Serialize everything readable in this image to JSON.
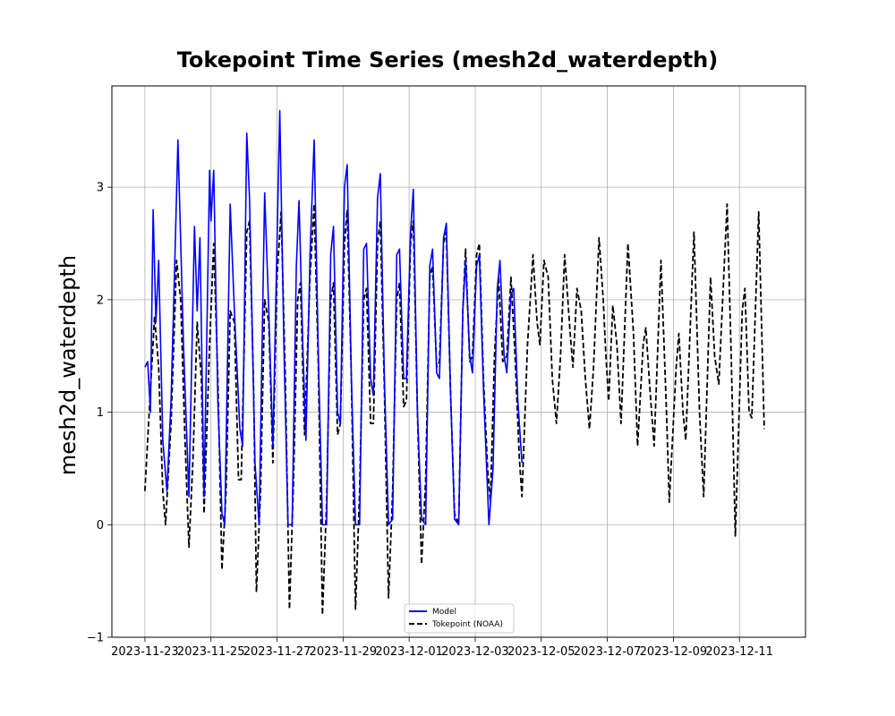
{
  "chart_data": {
    "type": "line",
    "title": "Tokepoint Time Series (mesh2d_waterdepth)",
    "xlabel": "",
    "ylabel": "mesh2d_waterdepth",
    "x_axis": {
      "type": "date",
      "range": [
        "2023-11-22T00:00",
        "2023-12-13T00:00"
      ],
      "ticks": [
        "2023-11-23",
        "2023-11-25",
        "2023-11-27",
        "2023-11-29",
        "2023-12-01",
        "2023-12-03",
        "2023-12-05",
        "2023-12-07",
        "2023-12-09",
        "2023-12-11"
      ]
    },
    "y_axis": {
      "range": [
        -1.0,
        3.9
      ],
      "ticks": [
        -1,
        0,
        1,
        2,
        3
      ]
    },
    "grid": true,
    "legend_position": "lower-center",
    "series": [
      {
        "name": "Model",
        "color": "#0000ff",
        "style": "solid",
        "points": [
          [
            "2023-11-23T00:00",
            1.4
          ],
          [
            "2023-11-23T02:00",
            1.45
          ],
          [
            "2023-11-23T04:00",
            1.0
          ],
          [
            "2023-11-23T06:00",
            2.8
          ],
          [
            "2023-11-23T08:00",
            1.8
          ],
          [
            "2023-11-23T10:00",
            2.35
          ],
          [
            "2023-11-23T13:00",
            0.75
          ],
          [
            "2023-11-23T16:00",
            0.3
          ],
          [
            "2023-11-23T19:00",
            1.1
          ],
          [
            "2023-11-23T22:00",
            2.45
          ],
          [
            "2023-11-24T00:00",
            3.42
          ],
          [
            "2023-11-24T04:00",
            1.6
          ],
          [
            "2023-11-24T08:00",
            0.25
          ],
          [
            "2023-11-24T12:00",
            2.65
          ],
          [
            "2023-11-24T14:00",
            1.9
          ],
          [
            "2023-11-24T16:00",
            2.55
          ],
          [
            "2023-11-24T19:00",
            0.25
          ],
          [
            "2023-11-24T23:00",
            3.15
          ],
          [
            "2023-11-25T00:00",
            2.7
          ],
          [
            "2023-11-25T02:00",
            3.15
          ],
          [
            "2023-11-25T05:00",
            1.1
          ],
          [
            "2023-11-25T08:00",
            0.1
          ],
          [
            "2023-11-25T10:00",
            0.0
          ],
          [
            "2023-11-25T14:00",
            2.85
          ],
          [
            "2023-11-25T17:00",
            1.9
          ],
          [
            "2023-11-25T21:00",
            0.85
          ],
          [
            "2023-11-25T23:00",
            0.7
          ],
          [
            "2023-11-26T02:00",
            3.48
          ],
          [
            "2023-11-26T04:00",
            2.9
          ],
          [
            "2023-11-26T08:00",
            0.55
          ],
          [
            "2023-11-26T11:00",
            0.0
          ],
          [
            "2023-11-26T15:00",
            2.95
          ],
          [
            "2023-11-26T18:00",
            1.9
          ],
          [
            "2023-11-26T21:00",
            0.7
          ],
          [
            "2023-11-27T00:00",
            2.5
          ],
          [
            "2023-11-27T02:00",
            3.68
          ],
          [
            "2023-11-27T05:00",
            1.6
          ],
          [
            "2023-11-27T08:00",
            0.0
          ],
          [
            "2023-11-27T11:00",
            0.0
          ],
          [
            "2023-11-27T14:00",
            2.3
          ],
          [
            "2023-11-27T16:00",
            2.88
          ],
          [
            "2023-11-27T19:00",
            1.5
          ],
          [
            "2023-11-27T21:00",
            0.75
          ],
          [
            "2023-11-28T00:00",
            2.4
          ],
          [
            "2023-11-28T03:00",
            3.42
          ],
          [
            "2023-11-28T06:00",
            1.5
          ],
          [
            "2023-11-28T09:00",
            0.0
          ],
          [
            "2023-11-28T12:00",
            0.0
          ],
          [
            "2023-11-28T15:00",
            2.4
          ],
          [
            "2023-11-28T17:00",
            2.65
          ],
          [
            "2023-11-28T20:00",
            1.0
          ],
          [
            "2023-11-28T22:00",
            0.9
          ],
          [
            "2023-11-29T01:00",
            3.0
          ],
          [
            "2023-11-29T03:00",
            3.2
          ],
          [
            "2023-11-29T06:00",
            1.3
          ],
          [
            "2023-11-29T09:00",
            0.0
          ],
          [
            "2023-11-29T12:00",
            0.0
          ],
          [
            "2023-11-29T15:00",
            2.45
          ],
          [
            "2023-11-29T17:00",
            2.5
          ],
          [
            "2023-11-29T20:00",
            1.3
          ],
          [
            "2023-11-29T22:00",
            1.15
          ],
          [
            "2023-11-30T01:00",
            2.9
          ],
          [
            "2023-11-30T03:00",
            3.12
          ],
          [
            "2023-11-30T06:00",
            1.3
          ],
          [
            "2023-11-30T09:00",
            0.0
          ],
          [
            "2023-11-30T12:00",
            0.05
          ],
          [
            "2023-11-30T15:00",
            2.4
          ],
          [
            "2023-11-30T17:00",
            2.45
          ],
          [
            "2023-11-30T20:00",
            1.3
          ],
          [
            "2023-11-30T22:00",
            1.3
          ],
          [
            "2023-12-01T01:00",
            2.6
          ],
          [
            "2023-12-01T03:00",
            2.98
          ],
          [
            "2023-12-01T06:00",
            1.0
          ],
          [
            "2023-12-01T09:00",
            0.05
          ],
          [
            "2023-12-01T12:00",
            0.0
          ],
          [
            "2023-12-01T15:00",
            2.3
          ],
          [
            "2023-12-01T17:00",
            2.45
          ],
          [
            "2023-12-01T20:00",
            1.35
          ],
          [
            "2023-12-01T22:00",
            1.3
          ],
          [
            "2023-12-02T01:00",
            2.55
          ],
          [
            "2023-12-02T03:00",
            2.68
          ],
          [
            "2023-12-02T06:00",
            1.2
          ],
          [
            "2023-12-02T09:00",
            0.05
          ],
          [
            "2023-12-02T12:00",
            0.0
          ],
          [
            "2023-12-02T15:00",
            1.9
          ],
          [
            "2023-12-02T17:00",
            2.35
          ],
          [
            "2023-12-02T20:00",
            1.5
          ],
          [
            "2023-12-02T22:00",
            1.35
          ],
          [
            "2023-12-03T01:00",
            2.3
          ],
          [
            "2023-12-03T03:00",
            2.4
          ],
          [
            "2023-12-03T06:00",
            1.2
          ],
          [
            "2023-12-03T10:00",
            0.0
          ],
          [
            "2023-12-03T13:00",
            0.5
          ],
          [
            "2023-12-03T16:00",
            2.1
          ],
          [
            "2023-12-03T18:00",
            2.35
          ],
          [
            "2023-12-03T21:00",
            1.5
          ],
          [
            "2023-12-03T23:00",
            1.35
          ],
          [
            "2023-12-04T02:00",
            2.05
          ],
          [
            "2023-12-04T04:00",
            2.1
          ],
          [
            "2023-12-04T07:00",
            1.1
          ],
          [
            "2023-12-04T10:00",
            0.55
          ]
        ]
      },
      {
        "name": "Tokepoint (NOAA)",
        "color": "#000000",
        "style": "dashed",
        "points": [
          [
            "2023-11-23T00:00",
            0.3
          ],
          [
            "2023-11-23T04:00",
            1.2
          ],
          [
            "2023-11-23T07:00",
            1.85
          ],
          [
            "2023-11-23T10:00",
            1.4
          ],
          [
            "2023-11-23T13:00",
            0.3
          ],
          [
            "2023-11-23T15:00",
            0.0
          ],
          [
            "2023-11-23T19:00",
            0.9
          ],
          [
            "2023-11-23T23:00",
            2.35
          ],
          [
            "2023-11-24T02:00",
            2.0
          ],
          [
            "2023-11-24T05:00",
            0.8
          ],
          [
            "2023-11-24T08:00",
            -0.2
          ],
          [
            "2023-11-24T11:00",
            0.6
          ],
          [
            "2023-11-24T14:00",
            1.8
          ],
          [
            "2023-11-24T17:00",
            1.3
          ],
          [
            "2023-11-24T19:00",
            0.1
          ],
          [
            "2023-11-24T23:00",
            1.6
          ],
          [
            "2023-11-25T02:00",
            2.5
          ],
          [
            "2023-11-25T05:00",
            1.3
          ],
          [
            "2023-11-25T08:00",
            -0.4
          ],
          [
            "2023-11-25T11:00",
            0.3
          ],
          [
            "2023-11-25T14:00",
            1.9
          ],
          [
            "2023-11-25T17:00",
            1.8
          ],
          [
            "2023-11-25T20:00",
            0.4
          ],
          [
            "2023-11-25T22:00",
            0.4
          ],
          [
            "2023-11-26T02:00",
            2.6
          ],
          [
            "2023-11-26T04:00",
            2.7
          ],
          [
            "2023-11-26T07:00",
            1.2
          ],
          [
            "2023-11-26T09:00",
            -0.6
          ],
          [
            "2023-11-26T12:00",
            0.3
          ],
          [
            "2023-11-26T15:00",
            2.0
          ],
          [
            "2023-11-26T18:00",
            1.8
          ],
          [
            "2023-11-26T21:00",
            0.55
          ],
          [
            "2023-11-27T00:00",
            2.2
          ],
          [
            "2023-11-27T03:00",
            2.78
          ],
          [
            "2023-11-27T06:00",
            1.3
          ],
          [
            "2023-11-27T09:00",
            -0.75
          ],
          [
            "2023-11-27T12:00",
            0.4
          ],
          [
            "2023-11-27T15:00",
            2.0
          ],
          [
            "2023-11-27T17:00",
            2.15
          ],
          [
            "2023-11-27T20:00",
            0.8
          ],
          [
            "2023-11-28T00:00",
            2.2
          ],
          [
            "2023-11-28T03:00",
            2.85
          ],
          [
            "2023-11-28T06:00",
            1.4
          ],
          [
            "2023-11-28T09:00",
            -0.8
          ],
          [
            "2023-11-28T12:00",
            0.2
          ],
          [
            "2023-11-28T15:00",
            2.0
          ],
          [
            "2023-11-28T17:00",
            2.15
          ],
          [
            "2023-11-28T20:00",
            0.8
          ],
          [
            "2023-11-28T22:00",
            0.9
          ],
          [
            "2023-11-29T01:00",
            2.5
          ],
          [
            "2023-11-29T03:00",
            2.8
          ],
          [
            "2023-11-29T06:00",
            1.3
          ],
          [
            "2023-11-29T09:00",
            -0.75
          ],
          [
            "2023-11-29T12:00",
            0.3
          ],
          [
            "2023-11-29T15:00",
            2.0
          ],
          [
            "2023-11-29T17:00",
            2.1
          ],
          [
            "2023-11-29T20:00",
            0.9
          ],
          [
            "2023-11-29T22:00",
            0.9
          ],
          [
            "2023-11-30T01:00",
            2.5
          ],
          [
            "2023-11-30T03:00",
            2.7
          ],
          [
            "2023-11-30T06:00",
            1.2
          ],
          [
            "2023-11-30T09:00",
            -0.65
          ],
          [
            "2023-11-30T12:00",
            0.3
          ],
          [
            "2023-11-30T15:00",
            2.0
          ],
          [
            "2023-11-30T17:00",
            2.15
          ],
          [
            "2023-11-30T20:00",
            1.05
          ],
          [
            "2023-11-30T22:00",
            1.1
          ],
          [
            "2023-12-01T01:00",
            2.5
          ],
          [
            "2023-12-01T03:00",
            2.7
          ],
          [
            "2023-12-01T06:00",
            1.0
          ],
          [
            "2023-12-01T09:00",
            -0.35
          ],
          [
            "2023-12-01T12:00",
            0.4
          ],
          [
            "2023-12-01T15:00",
            2.2
          ],
          [
            "2023-12-01T17:00",
            2.3
          ],
          [
            "2023-12-01T20:00",
            1.4
          ],
          [
            "2023-12-01T22:00",
            1.45
          ],
          [
            "2023-12-02T01:00",
            2.5
          ],
          [
            "2023-12-02T03:00",
            2.6
          ],
          [
            "2023-12-02T06:00",
            1.2
          ],
          [
            "2023-12-02T09:00",
            0.1
          ],
          [
            "2023-12-02T12:00",
            0.0
          ],
          [
            "2023-12-02T15:00",
            1.9
          ],
          [
            "2023-12-02T17:00",
            2.45
          ],
          [
            "2023-12-02T20:00",
            1.45
          ],
          [
            "2023-12-02T22:00",
            1.5
          ],
          [
            "2023-12-03T01:00",
            2.4
          ],
          [
            "2023-12-03T03:00",
            2.5
          ],
          [
            "2023-12-03T06:00",
            1.3
          ],
          [
            "2023-12-03T09:00",
            0.5
          ],
          [
            "2023-12-03T11:00",
            0.2
          ],
          [
            "2023-12-03T14:00",
            1.5
          ],
          [
            "2023-12-03T17:00",
            2.2
          ],
          [
            "2023-12-03T20:00",
            1.45
          ],
          [
            "2023-12-03T23:00",
            1.5
          ],
          [
            "2023-12-04T02:00",
            2.2
          ],
          [
            "2023-12-04T05:00",
            1.5
          ],
          [
            "2023-12-04T08:00",
            0.6
          ],
          [
            "2023-12-04T10:00",
            0.25
          ],
          [
            "2023-12-04T14:00",
            1.6
          ],
          [
            "2023-12-04T18:00",
            2.4
          ],
          [
            "2023-12-04T21:00",
            1.8
          ],
          [
            "2023-12-04T23:00",
            1.6
          ],
          [
            "2023-12-05T02:00",
            2.35
          ],
          [
            "2023-12-05T05:00",
            2.2
          ],
          [
            "2023-12-05T08:00",
            1.3
          ],
          [
            "2023-12-05T11:00",
            0.9
          ],
          [
            "2023-12-05T14:00",
            1.5
          ],
          [
            "2023-12-05T17:00",
            2.4
          ],
          [
            "2023-12-05T21:00",
            1.7
          ],
          [
            "2023-12-05T23:00",
            1.4
          ],
          [
            "2023-12-06T02:00",
            2.1
          ],
          [
            "2023-12-06T05:00",
            1.9
          ],
          [
            "2023-12-06T08:00",
            1.3
          ],
          [
            "2023-12-06T11:00",
            0.85
          ],
          [
            "2023-12-06T14:00",
            1.4
          ],
          [
            "2023-12-06T18:00",
            2.55
          ],
          [
            "2023-12-06T21:00",
            2.0
          ],
          [
            "2023-12-06T23:00",
            1.5
          ],
          [
            "2023-12-07T01:00",
            1.1
          ],
          [
            "2023-12-07T04:00",
            1.95
          ],
          [
            "2023-12-07T07:00",
            1.6
          ],
          [
            "2023-12-07T10:00",
            0.9
          ],
          [
            "2023-12-07T15:00",
            2.5
          ],
          [
            "2023-12-07T19:00",
            1.7
          ],
          [
            "2023-12-07T22:00",
            0.7
          ],
          [
            "2023-12-08T02:00",
            1.6
          ],
          [
            "2023-12-08T04:00",
            1.75
          ],
          [
            "2023-12-08T07:00",
            1.2
          ],
          [
            "2023-12-08T10:00",
            0.7
          ],
          [
            "2023-12-08T15:00",
            2.35
          ],
          [
            "2023-12-08T19:00",
            1.0
          ],
          [
            "2023-12-08T21:00",
            0.2
          ],
          [
            "2023-12-09T02:00",
            1.4
          ],
          [
            "2023-12-09T04:00",
            1.7
          ],
          [
            "2023-12-09T07:00",
            1.0
          ],
          [
            "2023-12-09T09:00",
            0.75
          ],
          [
            "2023-12-09T15:00",
            2.6
          ],
          [
            "2023-12-09T19:00",
            1.0
          ],
          [
            "2023-12-09T22:00",
            0.25
          ],
          [
            "2023-12-10T03:00",
            2.2
          ],
          [
            "2023-12-10T06:00",
            1.5
          ],
          [
            "2023-12-10T09:00",
            1.25
          ],
          [
            "2023-12-10T15:00",
            2.85
          ],
          [
            "2023-12-10T18:00",
            1.5
          ],
          [
            "2023-12-10T21:00",
            -0.1
          ],
          [
            "2023-12-11T02:00",
            1.9
          ],
          [
            "2023-12-11T04:00",
            2.1
          ],
          [
            "2023-12-11T07:00",
            1.0
          ],
          [
            "2023-12-11T09:00",
            0.95
          ],
          [
            "2023-12-11T14:00",
            2.78
          ],
          [
            "2023-12-11T18:00",
            0.85
          ]
        ]
      }
    ]
  }
}
